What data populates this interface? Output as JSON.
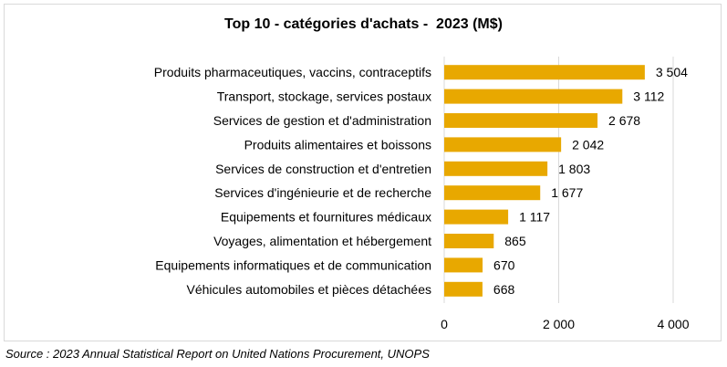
{
  "chart_data": {
    "type": "bar",
    "orientation": "horizontal",
    "title": "Top 10 - catégories d'achats -  2023 (M$)",
    "categories": [
      "Produits pharmaceutiques, vaccins, contraceptifs",
      "Transport, stockage, services postaux",
      "Services de gestion et d'administration",
      "Produits alimentaires et boissons",
      "Services de construction et d'entretien",
      "Services d'ingénieurie et de recherche",
      "Equipements et fournitures médicaux",
      "Voyages, alimentation et hébergement",
      "Equipements informatiques et de communication",
      "Véhicules automobiles et pièces détachées"
    ],
    "values": [
      3504,
      3112,
      2678,
      2042,
      1803,
      1677,
      1117,
      865,
      670,
      668
    ],
    "value_labels": [
      "3 504",
      "3 112",
      "2 678",
      "2 042",
      "1 803",
      "1 677",
      "1 117",
      "865",
      "670",
      "668"
    ],
    "xlim": [
      0,
      4000
    ],
    "x_ticks": [
      0,
      2000,
      4000
    ],
    "x_tick_labels": [
      "0",
      "2 000",
      "4 000"
    ],
    "grid": "vertical",
    "bar_color": "#E8A800",
    "grid_color": "#d9d9d9",
    "xlabel": "",
    "ylabel": ""
  },
  "source": "Source : 2023 Annual Statistical Report on United Nations Procurement, UNOPS"
}
